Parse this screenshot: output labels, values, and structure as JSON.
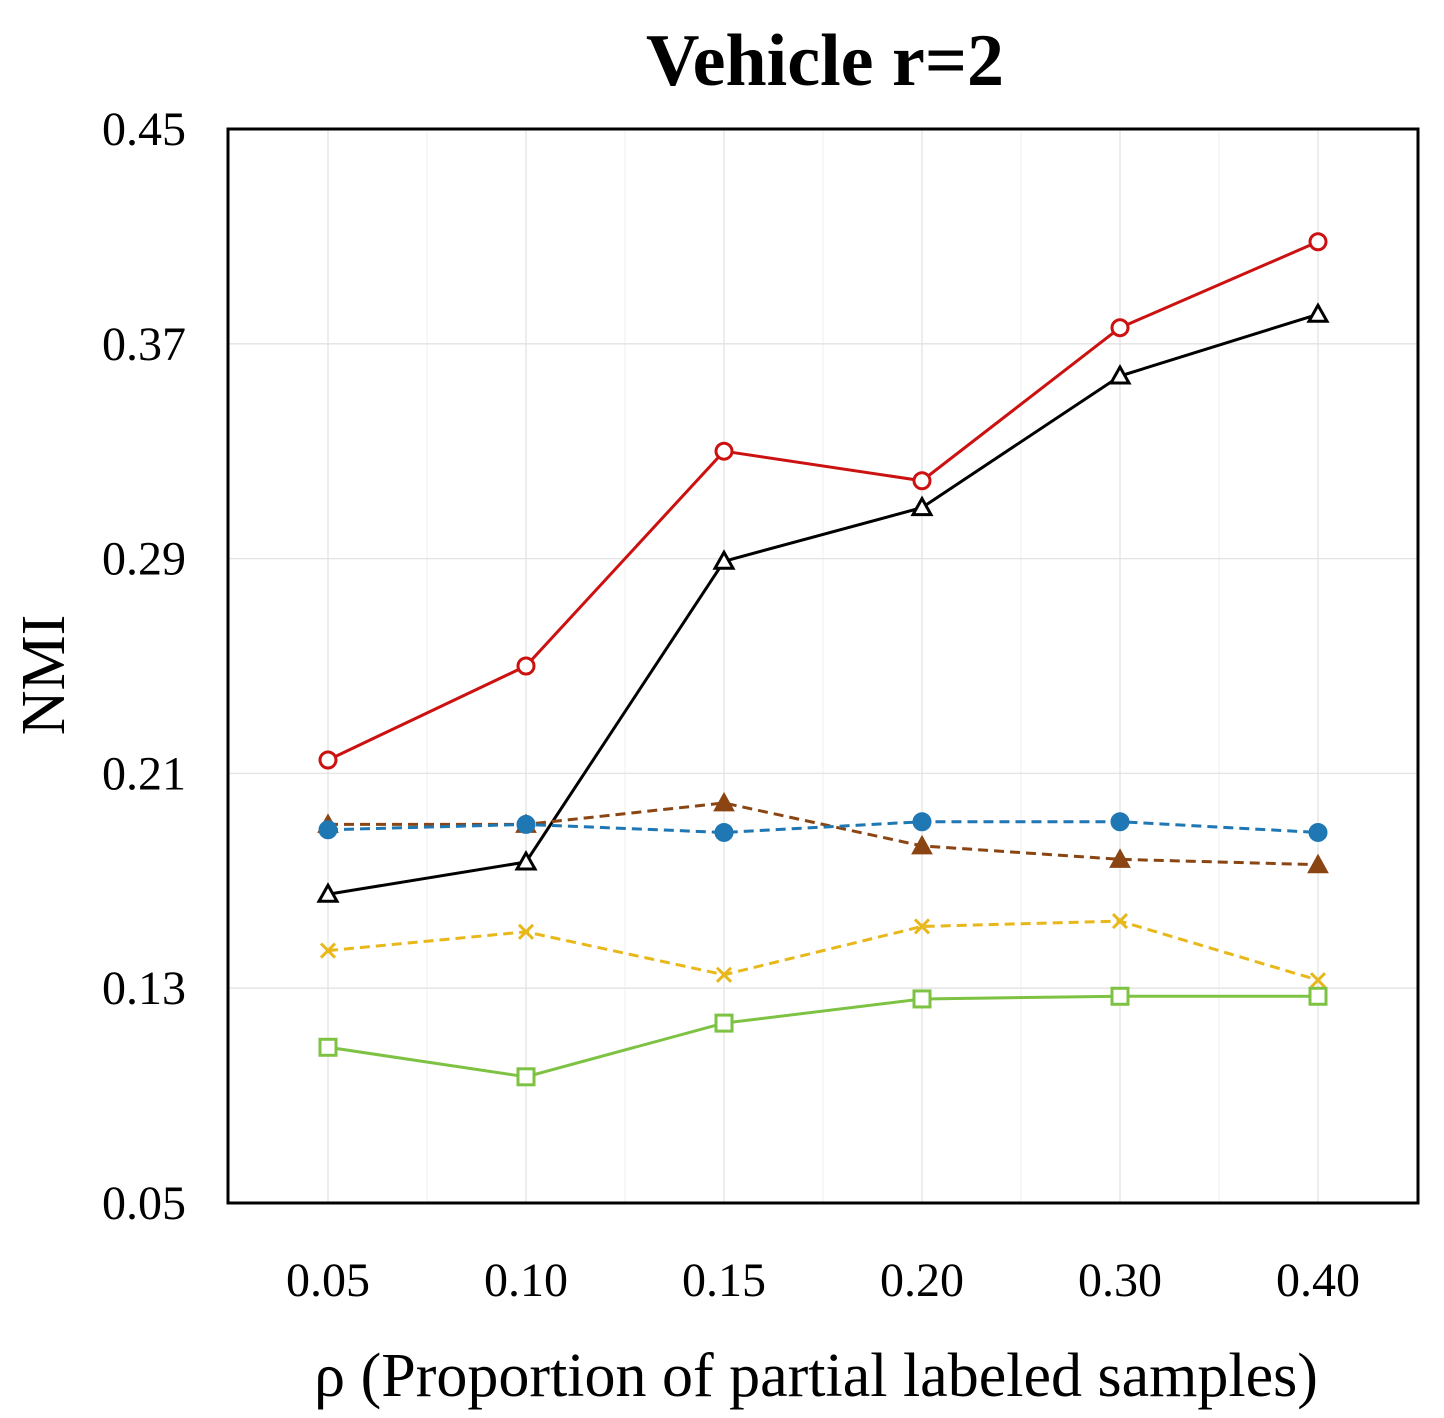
{
  "chart_data": {
    "type": "line",
    "title": "Vehicle r=2",
    "xlabel": "ρ (Proportion of partial labeled samples)",
    "ylabel": "NMI",
    "categories": [
      "0.05",
      "0.10",
      "0.15",
      "0.20",
      "0.30",
      "0.40"
    ],
    "yticks": [
      "0.05",
      "0.13",
      "0.21",
      "0.29",
      "0.37",
      "0.45"
    ],
    "ylim": [
      0.05,
      0.45
    ],
    "grid": true,
    "legend": "none",
    "series": [
      {
        "values": [
          0.215,
          0.25,
          0.33,
          0.319,
          0.376,
          0.408
        ],
        "color": "#cc1111",
        "marker": "open-circle",
        "dash": "solid"
      },
      {
        "values": [
          0.165,
          0.177,
          0.289,
          0.309,
          0.358,
          0.381
        ],
        "color": "#000000",
        "marker": "open-triangle",
        "dash": "solid"
      },
      {
        "values": [
          0.191,
          0.191,
          0.199,
          0.183,
          0.178,
          0.176
        ],
        "color": "#8b4513",
        "marker": "filled-triangle",
        "dash": "dashed"
      },
      {
        "values": [
          0.189,
          0.191,
          0.188,
          0.192,
          0.192,
          0.188
        ],
        "color": "#1f77b4",
        "marker": "filled-circle",
        "dash": "dashed"
      },
      {
        "values": [
          0.144,
          0.151,
          0.135,
          0.153,
          0.155,
          0.133
        ],
        "color": "#e8b81a",
        "marker": "x",
        "dash": "dashed"
      },
      {
        "values": [
          0.108,
          0.097,
          0.117,
          0.126,
          0.127,
          0.127
        ],
        "color": "#7dc242",
        "marker": "open-square",
        "dash": "solid"
      }
    ]
  }
}
